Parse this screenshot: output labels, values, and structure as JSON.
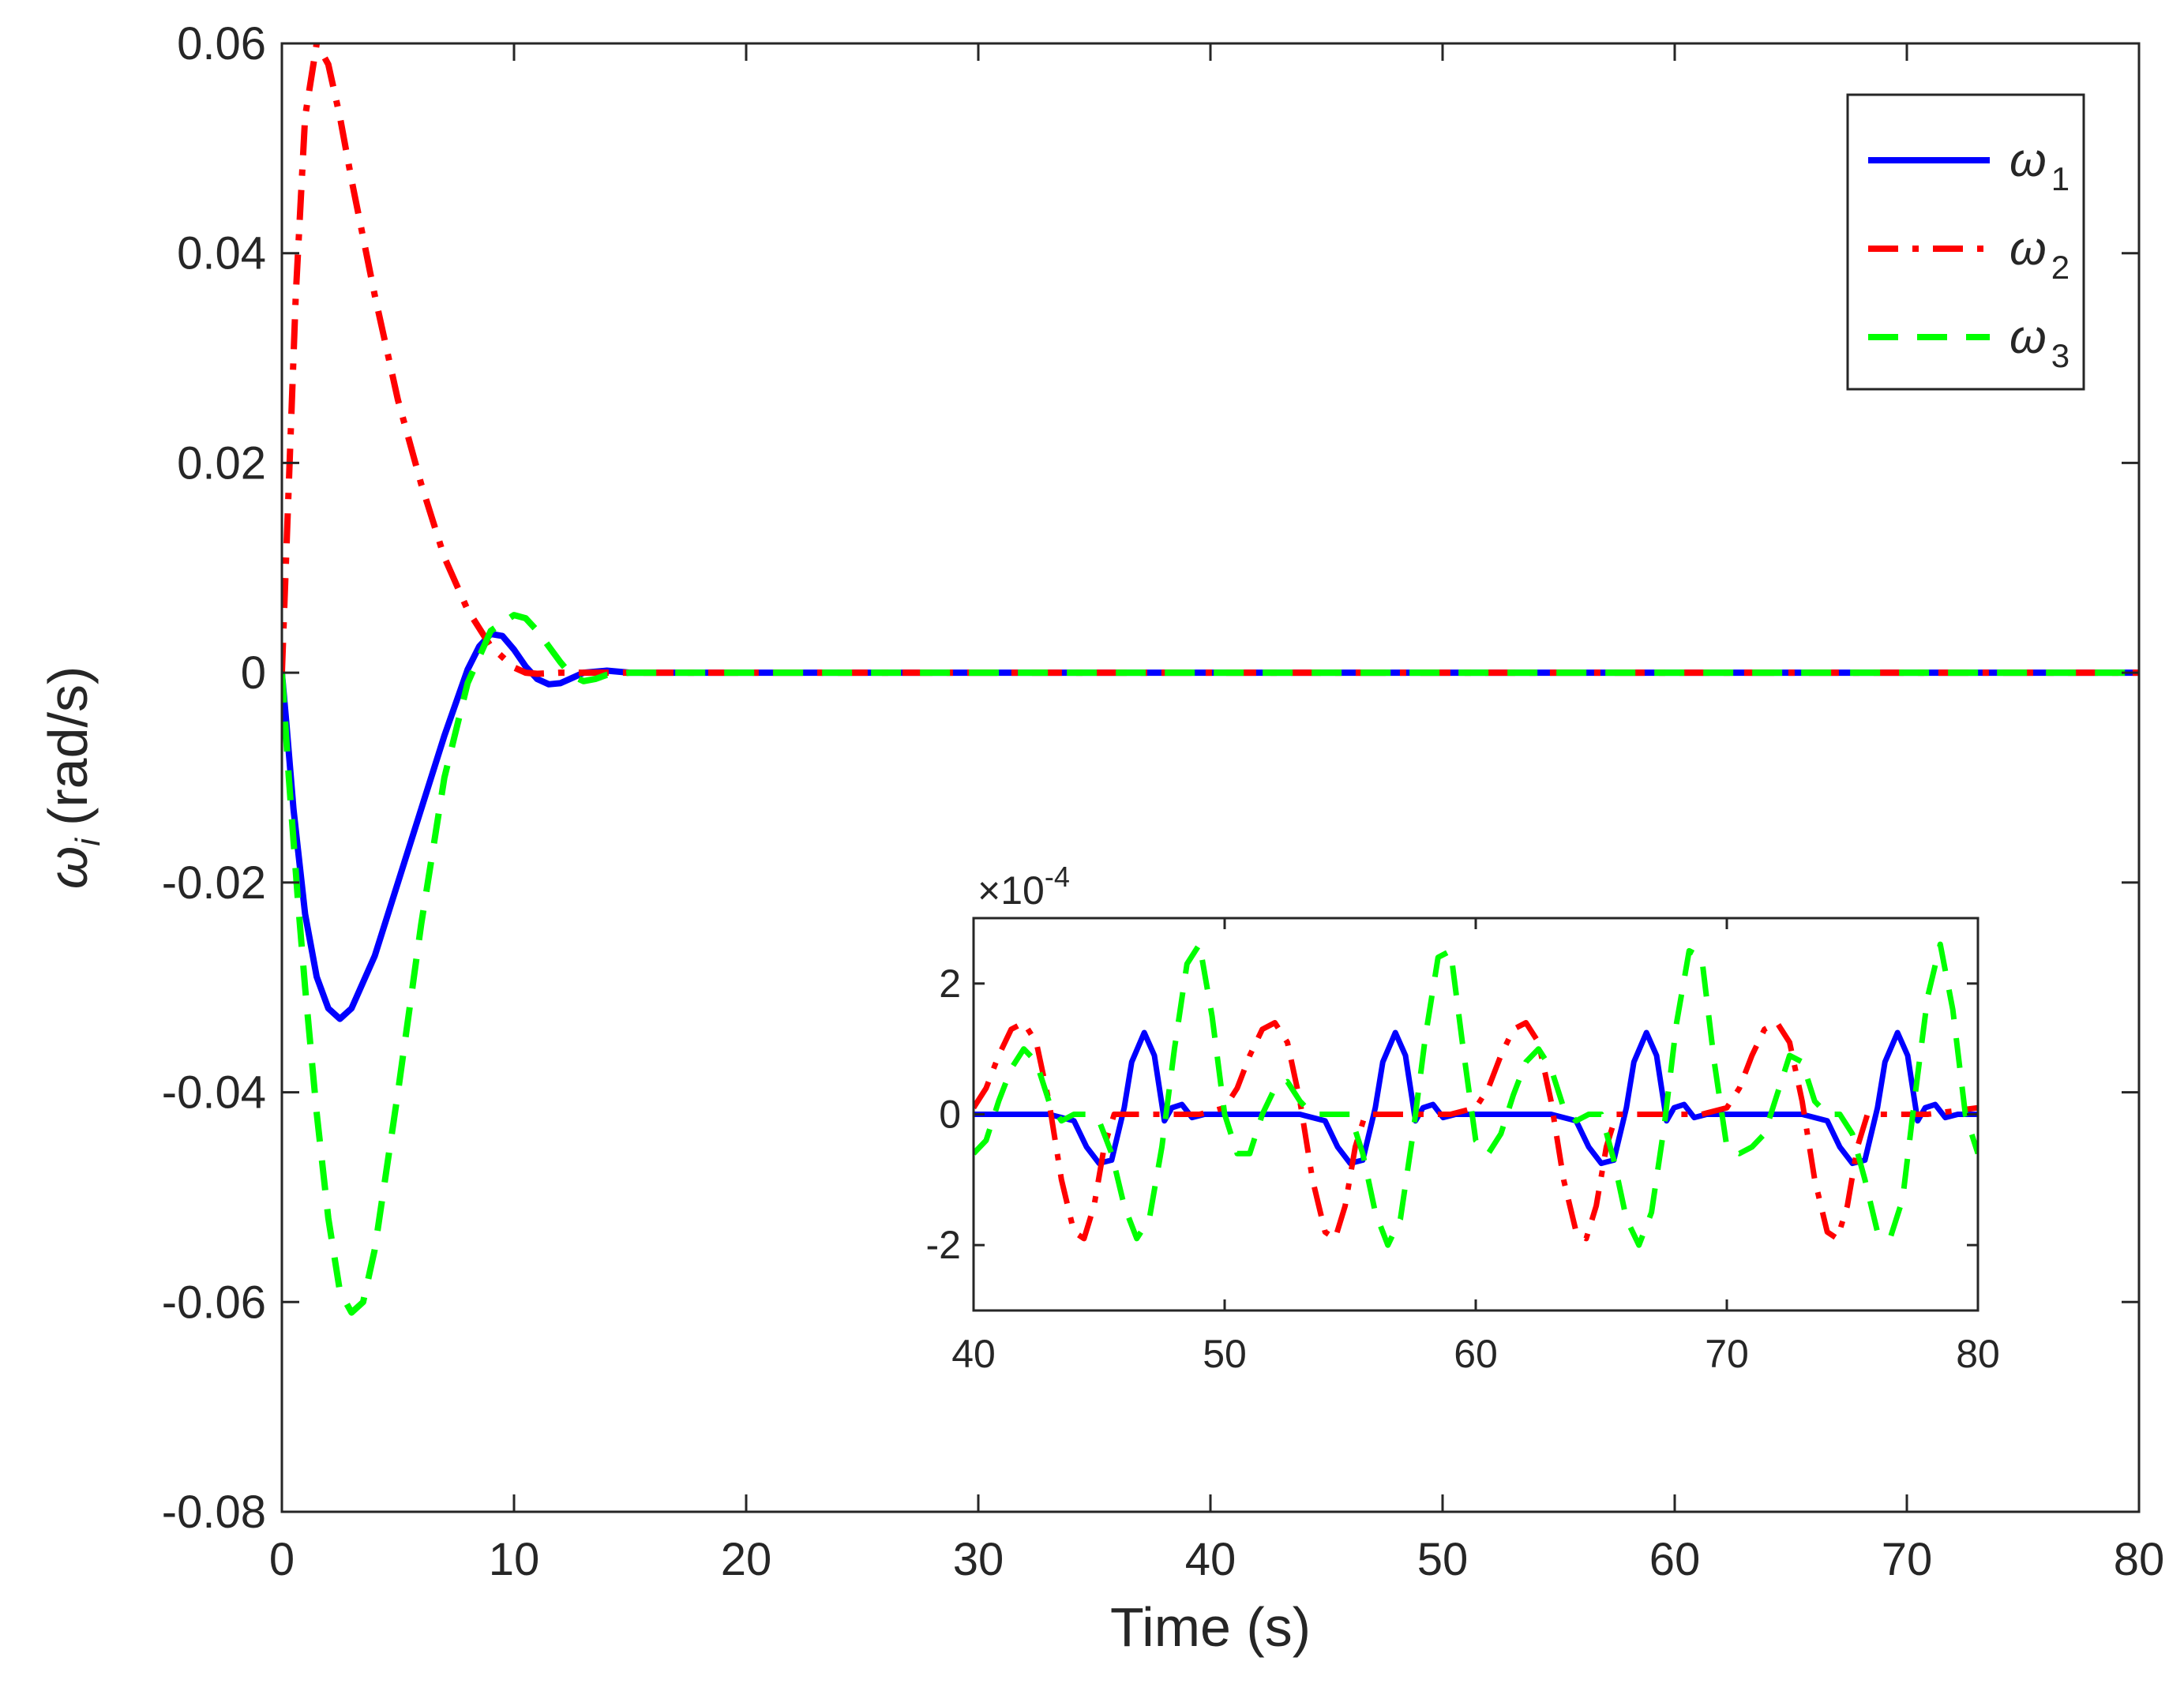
{
  "chart_data": [
    {
      "id": "main",
      "type": "line",
      "title": "",
      "xlabel": "Time (s)",
      "ylabel": {
        "symbol": "ω",
        "subscript": "i",
        "units": "(rad/s)"
      },
      "xlim": [
        0,
        80
      ],
      "ylim": [
        -0.08,
        0.06
      ],
      "xticks": [
        0,
        10,
        20,
        30,
        40,
        50,
        60,
        70,
        80
      ],
      "xtick_labels": [
        "0",
        "10",
        "20",
        "30",
        "40",
        "50",
        "60",
        "70",
        "80"
      ],
      "yticks": [
        -0.08,
        -0.06,
        -0.04,
        -0.02,
        0,
        0.02,
        0.04,
        0.06
      ],
      "ytick_labels": [
        "-0.08",
        "-0.06",
        "-0.04",
        "-0.02",
        "0",
        "0.02",
        "0.04",
        "0.06"
      ],
      "grid": false,
      "legend": {
        "position": "top-right",
        "entries": [
          {
            "symbol": "ω",
            "sub": "1",
            "series": "omega1"
          },
          {
            "symbol": "ω",
            "sub": "2",
            "series": "omega2"
          },
          {
            "symbol": "ω",
            "sub": "3",
            "series": "omega3"
          }
        ]
      },
      "series": [
        {
          "id": "omega1",
          "name": "ω1",
          "color": "#0000ff",
          "style": "solid",
          "x": [
            0,
            0.2,
            0.5,
            1,
            1.5,
            2,
            2.5,
            3,
            4,
            5,
            6,
            7,
            8,
            8.5,
            9,
            9.5,
            10,
            10.5,
            11,
            11.5,
            12,
            12.5,
            13,
            14,
            15,
            16,
            20,
            30,
            40,
            50,
            60,
            70,
            80
          ],
          "y": [
            0,
            -0.005,
            -0.013,
            -0.023,
            -0.029,
            -0.032,
            -0.033,
            -0.032,
            -0.027,
            -0.02,
            -0.013,
            -0.006,
            0.0003,
            0.0025,
            0.0037,
            0.0035,
            0.0022,
            0.0006,
            -0.0006,
            -0.0011,
            -0.001,
            -0.0005,
            0,
            0.0002,
            0,
            0,
            0,
            0,
            0,
            0,
            0,
            0,
            0
          ]
        },
        {
          "id": "omega2",
          "name": "ω2",
          "color": "#ff0000",
          "style": "dashdot",
          "x": [
            0,
            0.3,
            0.6,
            1,
            1.5,
            2,
            2.5,
            3,
            4,
            5,
            6,
            7,
            8,
            9,
            10,
            10.5,
            11,
            12,
            14,
            16,
            20,
            30,
            40,
            50,
            60,
            70,
            80
          ],
          "y": [
            0,
            0.018,
            0.036,
            0.053,
            0.06,
            0.058,
            0.053,
            0.047,
            0.036,
            0.026,
            0.018,
            0.011,
            0.006,
            0.0025,
            0.0005,
            0,
            -0.0001,
            0,
            0,
            0,
            0,
            0,
            0,
            0,
            0,
            0,
            0
          ]
        },
        {
          "id": "omega3",
          "name": "ω3",
          "color": "#00ff00",
          "style": "dashed",
          "x": [
            0,
            0.3,
            0.7,
            1,
            1.5,
            2,
            2.5,
            3,
            3.5,
            4,
            5,
            6,
            7,
            8,
            9,
            10,
            10.5,
            11,
            11.5,
            12,
            12.5,
            13,
            13.5,
            14,
            15,
            16,
            20,
            30,
            40,
            50,
            60,
            70,
            80
          ],
          "y": [
            0,
            -0.01,
            -0.022,
            -0.03,
            -0.042,
            -0.052,
            -0.059,
            -0.061,
            -0.06,
            -0.055,
            -0.04,
            -0.024,
            -0.01,
            -0.001,
            0.004,
            0.0055,
            0.0052,
            0.004,
            0.0025,
            0.001,
            -0.0003,
            -0.0008,
            -0.0006,
            -0.0002,
            0,
            0,
            0,
            0,
            0,
            0,
            0,
            0,
            0
          ]
        }
      ]
    },
    {
      "id": "inset",
      "type": "line",
      "title": "",
      "exponent_label": "×10",
      "exponent_power": "-4",
      "xlim": [
        40,
        80
      ],
      "ylim": [
        -3,
        3
      ],
      "y_scale": 0.0001,
      "xticks": [
        40,
        50,
        60,
        70,
        80
      ],
      "xtick_labels": [
        "40",
        "50",
        "60",
        "70",
        "80"
      ],
      "yticks": [
        -2,
        0,
        2
      ],
      "ytick_labels": [
        "-2",
        "0",
        "2"
      ],
      "grid": false,
      "series": [
        {
          "id": "omega1-inset",
          "name": "ω1",
          "color": "#0000ff",
          "style": "solid",
          "x": [
            40,
            42,
            43,
            44,
            44.5,
            45,
            45.5,
            46,
            46.3,
            46.8,
            47.2,
            47.6,
            47.9,
            48.3,
            48.7,
            49.2,
            50,
            52,
            53,
            54,
            54.5,
            55,
            55.5,
            56,
            56.3,
            56.8,
            57.2,
            57.6,
            57.9,
            58.3,
            58.7,
            59.2,
            60,
            62,
            63,
            64,
            64.5,
            65,
            65.5,
            66,
            66.3,
            66.8,
            67.2,
            67.6,
            67.9,
            68.3,
            68.7,
            69.2,
            70,
            72,
            73,
            74,
            74.5,
            75,
            75.5,
            76,
            76.3,
            76.8,
            77.2,
            77.6,
            77.9,
            78.3,
            78.7,
            79.2,
            80
          ],
          "y": [
            0,
            0,
            0,
            -0.1,
            -0.5,
            -0.75,
            -0.7,
            0.1,
            0.8,
            1.25,
            0.9,
            -0.1,
            0.1,
            0.15,
            -0.05,
            0,
            0,
            0,
            0,
            -0.1,
            -0.5,
            -0.75,
            -0.7,
            0.1,
            0.8,
            1.25,
            0.9,
            -0.1,
            0.1,
            0.15,
            -0.05,
            0,
            0,
            0,
            0,
            -0.1,
            -0.5,
            -0.75,
            -0.7,
            0.1,
            0.8,
            1.25,
            0.9,
            -0.1,
            0.1,
            0.15,
            -0.05,
            0,
            0,
            0,
            0,
            -0.1,
            -0.5,
            -0.75,
            -0.7,
            0.1,
            0.8,
            1.25,
            0.9,
            -0.1,
            0.1,
            0.15,
            -0.05,
            0,
            0
          ]
        },
        {
          "id": "omega2-inset",
          "name": "ω2",
          "color": "#ff0000",
          "style": "dashdot",
          "x": [
            40,
            40.5,
            41,
            41.5,
            42,
            42.5,
            43,
            43.5,
            44,
            44.4,
            44.8,
            45.2,
            45.6,
            46,
            47,
            48,
            49,
            50,
            50.5,
            51,
            51.5,
            52,
            52.5,
            53,
            53.5,
            54,
            54.4,
            54.8,
            55.2,
            55.6,
            56,
            57,
            58,
            59,
            60,
            60.5,
            61,
            61.5,
            62,
            62.5,
            63,
            63.5,
            64,
            64.4,
            64.8,
            65.2,
            65.6,
            66,
            67,
            68,
            69,
            70,
            70.5,
            71,
            71.5,
            72,
            72.5,
            73,
            73.5,
            74,
            74.4,
            74.8,
            75.2,
            75.6,
            76,
            77,
            78,
            79,
            80
          ],
          "y": [
            0.1,
            0.4,
            0.9,
            1.3,
            1.4,
            1.1,
            0.2,
            -1.0,
            -1.8,
            -1.9,
            -1.4,
            -0.5,
            0,
            0,
            0,
            0,
            0,
            0.1,
            0.4,
            0.9,
            1.3,
            1.4,
            1.1,
            0.2,
            -1.0,
            -1.8,
            -1.9,
            -1.4,
            -0.5,
            0,
            0,
            0,
            0,
            0,
            0.1,
            0.4,
            0.9,
            1.3,
            1.4,
            1.1,
            0.2,
            -1.0,
            -1.8,
            -1.9,
            -1.4,
            -0.5,
            0,
            0,
            0,
            0,
            0,
            0.1,
            0.4,
            0.9,
            1.3,
            1.4,
            1.1,
            0.2,
            -1.0,
            -1.8,
            -1.9,
            -1.4,
            -0.5,
            0,
            0,
            0,
            0,
            0.05,
            0.1
          ]
        },
        {
          "id": "omega3-inset",
          "name": "ω3",
          "color": "#00ff00",
          "style": "dashed",
          "x": [
            40,
            40.5,
            41,
            41.5,
            42,
            42.5,
            43,
            43.5,
            44,
            44.5,
            45,
            45.5,
            46,
            46.5,
            47,
            47.5,
            48,
            48.5,
            49,
            49.5,
            50,
            50.5,
            51,
            51.5,
            52,
            52.5,
            53,
            53.5,
            54,
            54.5,
            55,
            55.5,
            56,
            56.5,
            57,
            57.5,
            58,
            58.5,
            59,
            59.5,
            60,
            60.5,
            61,
            61.5,
            62,
            62.5,
            63,
            63.5,
            64,
            64.5,
            65,
            65.5,
            66,
            66.5,
            67,
            67.5,
            68,
            68.5,
            69,
            69.5,
            70,
            70.5,
            71,
            71.5,
            72,
            72.5,
            73,
            73.5,
            74,
            74.5,
            75,
            75.5,
            76,
            76.5,
            77,
            77.5,
            78,
            78.5,
            79,
            79.5,
            80
          ],
          "y": [
            -0.6,
            -0.4,
            0.2,
            0.7,
            1.0,
            0.8,
            0.2,
            -0.1,
            0,
            0,
            -0.1,
            -0.6,
            -1.4,
            -1.9,
            -1.6,
            -0.5,
            1.0,
            2.3,
            2.6,
            1.5,
            0,
            -0.6,
            -0.6,
            0,
            0.4,
            0.5,
            0.2,
            0,
            0,
            0,
            0,
            -0.6,
            -1.5,
            -2.0,
            -1.6,
            -0.3,
            1.2,
            2.4,
            2.5,
            1.0,
            -0.4,
            -0.6,
            -0.3,
            0.3,
            0.8,
            1.0,
            0.7,
            0.1,
            -0.1,
            0,
            0,
            -0.7,
            -1.6,
            -2.0,
            -1.5,
            -0.2,
            1.4,
            2.5,
            2.4,
            0.8,
            -0.5,
            -0.6,
            -0.5,
            -0.3,
            0.3,
            0.9,
            0.8,
            0.2,
            0,
            0,
            -0.3,
            -1.0,
            -1.8,
            -1.9,
            -1.3,
            0.3,
            1.8,
            2.6,
            1.6,
            0,
            -0.6
          ]
        }
      ]
    }
  ]
}
